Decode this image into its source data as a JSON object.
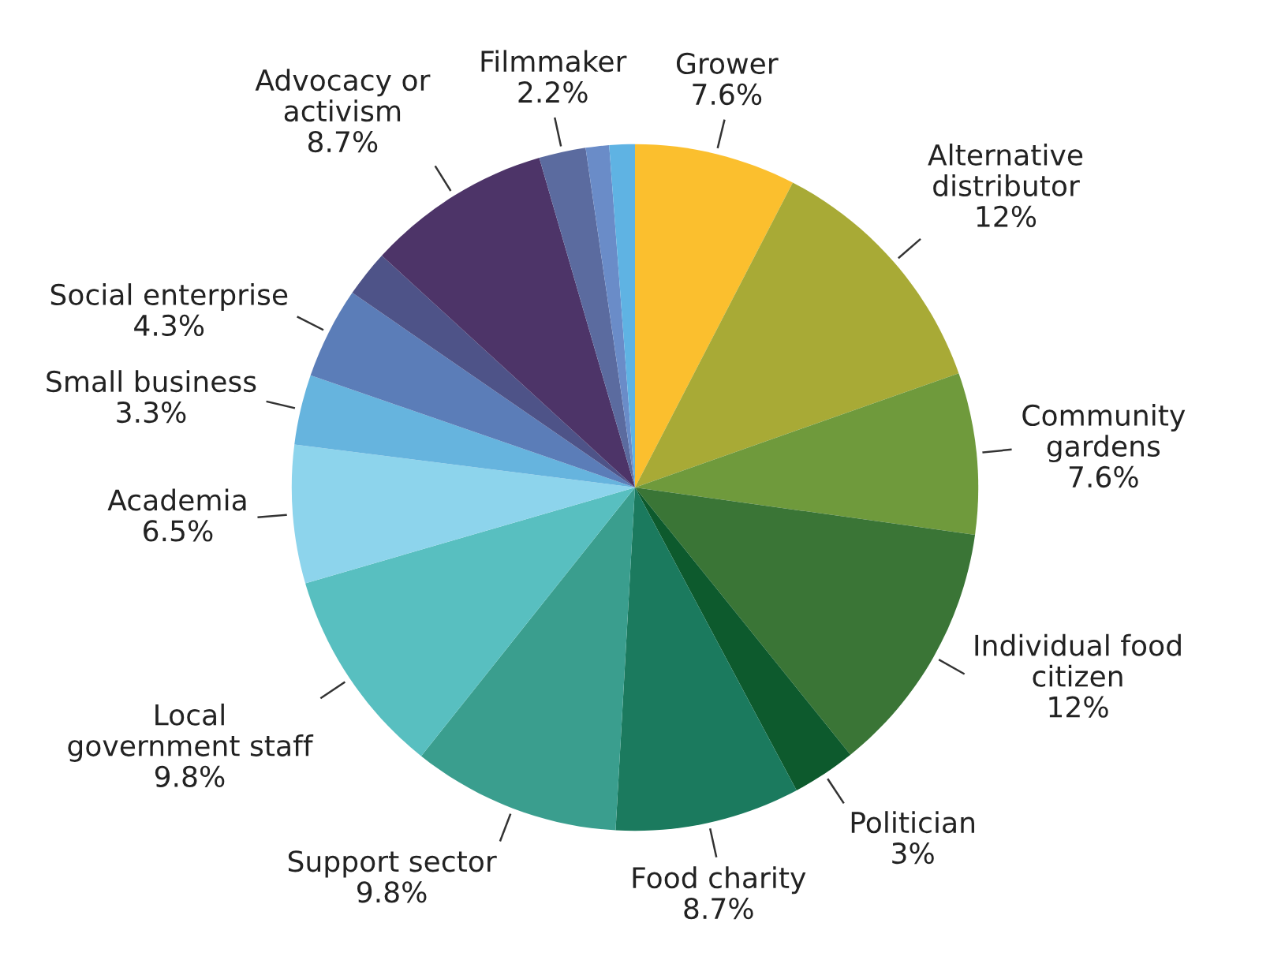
{
  "chart_data": {
    "type": "pie",
    "categories": [
      "Grower",
      "Alternative\ndistributor",
      "Community\ngardens",
      "Individual food\ncitizen",
      "Politician",
      "Food charity",
      "Support sector",
      "Local\ngovernment staff",
      "Academia",
      "Small business",
      "Social enterprise",
      null,
      "Advocacy or\nactivism",
      "Filmmaker",
      null,
      null
    ],
    "values": [
      7.6,
      12,
      7.6,
      12,
      3,
      8.7,
      9.8,
      9.8,
      6.5,
      3.3,
      4.3,
      2.2,
      8.7,
      2.2,
      1.1,
      1.2
    ],
    "value_labels": [
      "7.6%",
      "12%",
      "7.6%",
      "12%",
      "3%",
      "8.7%",
      "9.8%",
      "9.8%",
      "6.5%",
      "3.3%",
      "4.3%",
      null,
      "8.7%",
      "2.2%",
      null,
      null
    ],
    "colors": [
      "#fbbf2e",
      "#a8aa36",
      "#6f9a3c",
      "#3a7536",
      "#0d5a2d",
      "#1b7a5e",
      "#3a9e8e",
      "#58bfc0",
      "#8dd4ec",
      "#66b4de",
      "#5b7db8",
      "#4e5388",
      "#4d3468",
      "#5b6b9f",
      "#6a8cc8",
      "#5fb3e3"
    ]
  }
}
